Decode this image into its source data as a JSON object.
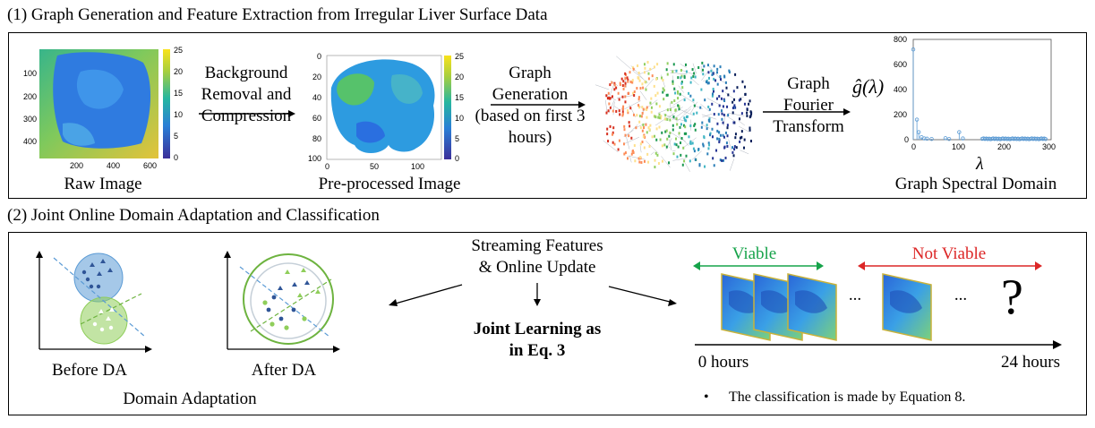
{
  "section1": {
    "title": "(1) Graph Generation and Feature Extraction from Irregular Liver Surface Data",
    "raw_image": {
      "caption": "Raw Image",
      "colorbar_ticks": [
        "25",
        "20",
        "15",
        "10",
        "5",
        "0"
      ],
      "y_ticks": [
        "100",
        "200",
        "300",
        "400"
      ],
      "x_ticks": [
        "200",
        "400",
        "600"
      ]
    },
    "step1": {
      "line1": "Background",
      "line2": "Removal and",
      "line3": "Compression"
    },
    "preprocessed": {
      "caption": "Pre-processed Image",
      "colorbar_ticks": [
        "25",
        "20",
        "15",
        "10",
        "5",
        "0"
      ],
      "y_ticks": [
        "0",
        "20",
        "40",
        "60",
        "80",
        "100"
      ],
      "x_ticks": [
        "0",
        "50",
        "100"
      ]
    },
    "step2": {
      "line1": "Graph",
      "line2": "Generation",
      "line3": "(based on first 3",
      "line4": "hours)"
    },
    "step3": {
      "line1": "Graph",
      "line2": "Fourier",
      "line3": "Transform"
    },
    "spectral": {
      "caption": "Graph Spectral Domain",
      "ylabel": "ĝ(λ)",
      "xlabel": "λ",
      "y_ticks": [
        "800",
        "600",
        "400",
        "200",
        "0"
      ],
      "x_ticks": [
        "0",
        "100",
        "200",
        "300"
      ]
    }
  },
  "section2": {
    "title": "(2) Joint Online Domain Adaptation and Classification",
    "before_da": "Before DA",
    "after_da": "After DA",
    "domain_adaptation": "Domain Adaptation",
    "streaming": {
      "line1": "Streaming Features",
      "line2": "& Online Update"
    },
    "joint": {
      "line1": "Joint Learning as",
      "line2": "in Eq. 3"
    },
    "viable": "Viable",
    "not_viable": "Not Viable",
    "ellipsis1": "...",
    "ellipsis2": "...",
    "question": "?",
    "start_time": "0 hours",
    "end_time": "24 hours",
    "bullet": "•",
    "note": "The classification is made by Equation 8."
  },
  "colors": {
    "viable": "#16a34a",
    "not_viable": "#dc2626",
    "domain_blue": "#5b9bd5",
    "domain_green": "#8fce5a"
  }
}
